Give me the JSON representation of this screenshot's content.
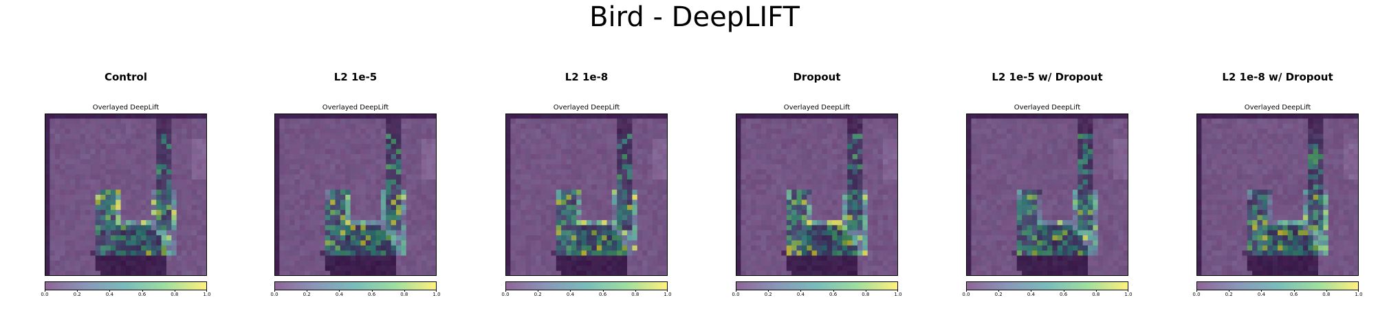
{
  "figure": {
    "title": "Bird - DeepLIFT"
  },
  "colormap": [
    "#440154",
    "#3b528b",
    "#21918c",
    "#5ec962",
    "#fde725"
  ],
  "overlay_alpha": 0.6,
  "chart_data": [
    {
      "type": "heatmap",
      "title": "Control",
      "subtitle": "Overlayed DeepLift",
      "seed": 11,
      "colorbar": {
        "range": [
          0,
          1
        ],
        "ticks": [
          "0.0",
          "0.2",
          "0.4",
          "0.6",
          "0.8",
          "1.0"
        ]
      }
    },
    {
      "type": "heatmap",
      "title": "L2 1e-5",
      "subtitle": "Overlayed DeepLift",
      "seed": 23,
      "colorbar": {
        "range": [
          0,
          1
        ],
        "ticks": [
          "0.0",
          "0.2",
          "0.4",
          "0.6",
          "0.8",
          "1.0"
        ]
      }
    },
    {
      "type": "heatmap",
      "title": "L2 1e-8",
      "subtitle": "Overlayed DeepLift",
      "seed": 37,
      "colorbar": {
        "range": [
          0,
          1
        ],
        "ticks": [
          "0.0",
          "0.2",
          "0.4",
          "0.6",
          "0.8",
          "1.0"
        ]
      }
    },
    {
      "type": "heatmap",
      "title": "Dropout",
      "subtitle": "Overlayed DeepLift",
      "seed": 41,
      "colorbar": {
        "range": [
          0,
          1
        ],
        "ticks": [
          "0.0",
          "0.2",
          "0.4",
          "0.6",
          "0.8",
          "1.0"
        ]
      }
    },
    {
      "type": "heatmap",
      "title": "L2 1e-5 w/ Dropout",
      "subtitle": "Overlayed DeepLift",
      "seed": 53,
      "colorbar": {
        "range": [
          0,
          1
        ],
        "ticks": [
          "0.0",
          "0.2",
          "0.4",
          "0.6",
          "0.8",
          "1.0"
        ]
      }
    },
    {
      "type": "heatmap",
      "title": "L2 1e-8 w/ Dropout",
      "subtitle": "Overlayed DeepLift",
      "seed": 67,
      "colorbar": {
        "range": [
          0,
          1
        ],
        "ticks": [
          "0.0",
          "0.2",
          "0.4",
          "0.6",
          "0.8",
          "1.0"
        ]
      }
    }
  ]
}
